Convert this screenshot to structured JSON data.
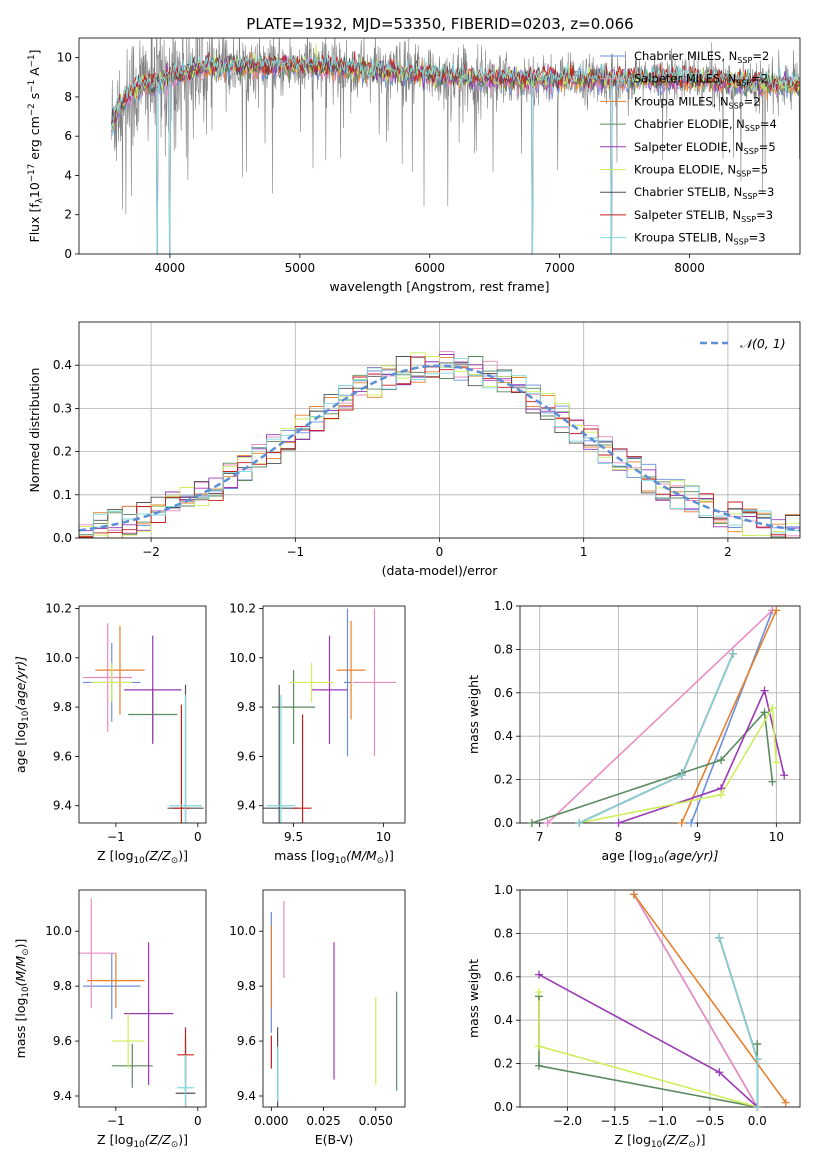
{
  "title": "PLATE=1932, MJD=53350, FIBERID=0203, z=0.066",
  "colors": {
    "Chabrier MILES": "#6a8fe0",
    "Salpeter MILES": "#e98cc1",
    "Kroupa MILES": "#e6802c",
    "Chabrier ELODIE": "#5b8a5e",
    "Salpeter ELODIE": "#9b38b6",
    "Kroupa ELODIE": "#cdef5a",
    "Chabrier STELIB": "#505050",
    "Salpeter STELIB": "#c81e1e",
    "Kroupa STELIB": "#7fd8df",
    "data": "#808080"
  },
  "chart_data": [
    {
      "id": "spectrum",
      "type": "line",
      "xlabel": "wavelength [Angstrom, rest frame]",
      "ylabel_parts": [
        "Flux [f",
        "λ",
        "10",
        "−17",
        " erg cm",
        "−2",
        " s",
        "−1",
        " A",
        "−1",
        "]"
      ],
      "xlim": [
        3300,
        8850
      ],
      "ylim": [
        0,
        11
      ],
      "xticks": [
        4000,
        5000,
        6000,
        7000,
        8000
      ],
      "yticks": [
        0,
        2,
        4,
        6,
        8,
        10
      ],
      "grid": false,
      "legend_position": "right",
      "legend": [
        {
          "label": "Chabrier MILES, N",
          "sub": "SSP",
          "tail": "=2",
          "series": "Chabrier MILES"
        },
        {
          "label": "Salpeter MILES, N",
          "sub": "SSP",
          "tail": "=2",
          "series": "Salpeter MILES"
        },
        {
          "label": "Kroupa MILES, N",
          "sub": "SSP",
          "tail": "=2",
          "series": "Kroupa MILES"
        },
        {
          "label": "Chabrier ELODIE, N",
          "sub": "SSP",
          "tail": "=4",
          "series": "Chabrier ELODIE"
        },
        {
          "label": "Salpeter ELODIE, N",
          "sub": "SSP",
          "tail": "=5",
          "series": "Salpeter ELODIE"
        },
        {
          "label": "Kroupa ELODIE, N",
          "sub": "SSP",
          "tail": "=5",
          "series": "Kroupa ELODIE"
        },
        {
          "label": "Chabrier STELIB, N",
          "sub": "SSP",
          "tail": "=3",
          "series": "Chabrier STELIB"
        },
        {
          "label": "Salpeter STELIB, N",
          "sub": "SSP",
          "tail": "=3",
          "series": "Salpeter STELIB"
        },
        {
          "label": "Kroupa STELIB, N",
          "sub": "SSP",
          "tail": "=3",
          "series": "Kroupa STELIB"
        }
      ],
      "data_range": [
        3550,
        9200
      ],
      "continuum": [
        [
          3550,
          6.5
        ],
        [
          3600,
          7.5
        ],
        [
          3700,
          8.2
        ],
        [
          3800,
          8.6
        ],
        [
          3900,
          8.6
        ],
        [
          4000,
          9.0
        ],
        [
          4100,
          9.2
        ],
        [
          4200,
          9.4
        ],
        [
          4300,
          9.5
        ],
        [
          4500,
          9.6
        ],
        [
          4800,
          9.5
        ],
        [
          5000,
          9.6
        ],
        [
          5300,
          9.5
        ],
        [
          5600,
          9.3
        ],
        [
          6000,
          9.1
        ],
        [
          6500,
          8.9
        ],
        [
          7000,
          8.9
        ],
        [
          7500,
          8.9
        ],
        [
          8000,
          8.9
        ],
        [
          8500,
          8.7
        ],
        [
          8850,
          8.6
        ]
      ],
      "model_drops": [
        [
          3900,
          -8
        ],
        [
          4000,
          -8
        ],
        [
          6790,
          -8
        ],
        [
          7400,
          -8
        ]
      ]
    },
    {
      "id": "residuals",
      "type": "histogram",
      "xlabel": "(data-model)/error",
      "ylabel": "Normed distribution",
      "xlim": [
        -2.5,
        2.5
      ],
      "ylim": [
        0,
        0.5
      ],
      "xticks": [
        -2,
        -1,
        0,
        1,
        2
      ],
      "yticks": [
        0.0,
        0.1,
        0.2,
        0.3,
        0.4
      ],
      "grid": true,
      "legend_position": "top-right",
      "legend": [
        {
          "label": "𝒩(0, 1)",
          "style": "dashed",
          "color": "#5b8fd6"
        }
      ],
      "bin_edges_from": -2.5,
      "bin_width": 0.1,
      "reference_curve": "standard normal pdf"
    },
    {
      "id": "age_vs_Z",
      "type": "errorbar",
      "xlabel": [
        "Z [log",
        "10",
        "(Z/Z",
        "⊙",
        ")]"
      ],
      "ylabel": [
        "age  [log",
        "10",
        "(age/yr)]"
      ],
      "xlim": [
        -1.45,
        0.1
      ],
      "ylim": [
        9.33,
        10.21
      ],
      "xticks": [
        -1,
        0
      ],
      "yticks": [
        9.4,
        9.6,
        9.8,
        10.0,
        10.2
      ],
      "points": [
        {
          "series": "Chabrier MILES",
          "x": -1.05,
          "y": 9.9,
          "xerr": 0.35,
          "yerr": 0.16
        },
        {
          "series": "Salpeter MILES",
          "x": -1.1,
          "y": 9.92,
          "xerr": 0.3,
          "yerr": 0.22
        },
        {
          "series": "Kroupa MILES",
          "x": -0.95,
          "y": 9.95,
          "xerr": 0.3,
          "yerr": 0.18
        },
        {
          "series": "Chabrier ELODIE",
          "x": -0.55,
          "y": 9.77,
          "xerr": 0.3,
          "yerr": 0.11
        },
        {
          "series": "Salpeter ELODIE",
          "x": -0.55,
          "y": 9.87,
          "xerr": 0.35,
          "yerr": 0.22
        },
        {
          "series": "Kroupa ELODIE",
          "x": -1.05,
          "y": 9.9,
          "xerr": 0.25,
          "yerr": 0.08
        },
        {
          "series": "Chabrier STELIB",
          "x": -0.15,
          "y": 9.39,
          "xerr": 0.22,
          "yerr": 0.5
        },
        {
          "series": "Salpeter STELIB",
          "x": -0.2,
          "y": 9.39,
          "xerr": 0.1,
          "yerr": 0.42
        },
        {
          "series": "Kroupa STELIB",
          "x": -0.15,
          "y": 9.4,
          "xerr": 0.2,
          "yerr": 0.45
        }
      ]
    },
    {
      "id": "age_vs_mass",
      "type": "errorbar",
      "xlabel": [
        "mass [log",
        "10",
        "(M/M",
        "⊙",
        ")]"
      ],
      "ylabel": [],
      "xlim": [
        9.33,
        10.12
      ],
      "ylim": [
        9.33,
        10.21
      ],
      "xticks": [
        9.5,
        10.0
      ],
      "yticks": [
        9.4,
        9.6,
        9.8,
        10.0,
        10.2
      ],
      "points": [
        {
          "series": "Chabrier MILES",
          "x": 9.8,
          "y": 9.9,
          "xerr": 0.02,
          "yerr": 0.3
        },
        {
          "series": "Salpeter MILES",
          "x": 9.95,
          "y": 9.9,
          "xerr": 0.12,
          "yerr": 0.3
        },
        {
          "series": "Kroupa MILES",
          "x": 9.82,
          "y": 9.95,
          "xerr": 0.08,
          "yerr": 0.2
        },
        {
          "series": "Chabrier ELODIE",
          "x": 9.5,
          "y": 9.8,
          "xerr": 0.12,
          "yerr": 0.15
        },
        {
          "series": "Salpeter ELODIE",
          "x": 9.7,
          "y": 9.87,
          "xerr": 0.1,
          "yerr": 0.22
        },
        {
          "series": "Kroupa ELODIE",
          "x": 9.6,
          "y": 9.9,
          "xerr": 0.12,
          "yerr": 0.08
        },
        {
          "series": "Chabrier STELIB",
          "x": 9.42,
          "y": 9.39,
          "xerr": 0.1,
          "yerr": 0.5
        },
        {
          "series": "Salpeter STELIB",
          "x": 9.55,
          "y": 9.39,
          "xerr": 0.05,
          "yerr": 0.38
        },
        {
          "series": "Kroupa STELIB",
          "x": 9.43,
          "y": 9.4,
          "xerr": 0.08,
          "yerr": 0.45
        }
      ]
    },
    {
      "id": "weight_vs_age",
      "type": "line",
      "xlabel": [
        "age  [log",
        "10",
        "(age/yr)]"
      ],
      "ylabel": "mass weight",
      "xlim": [
        6.75,
        10.3
      ],
      "ylim": [
        0,
        1
      ],
      "xticks": [
        7,
        8,
        9,
        10
      ],
      "yticks": [
        0.0,
        0.2,
        0.4,
        0.6,
        0.8,
        1.0
      ],
      "grid": true,
      "series": [
        {
          "name": "Chabrier MILES",
          "points": [
            [
              8.92,
              0.0
            ],
            [
              9.95,
              0.98
            ]
          ]
        },
        {
          "name": "Salpeter MILES",
          "points": [
            [
              7.1,
              0.0
            ],
            [
              9.95,
              0.98
            ]
          ]
        },
        {
          "name": "Kroupa MILES",
          "points": [
            [
              8.8,
              0.0
            ],
            [
              10.0,
              0.98
            ]
          ]
        },
        {
          "name": "Chabrier ELODIE",
          "points": [
            [
              6.9,
              0.0
            ],
            [
              8.8,
              0.23
            ],
            [
              9.3,
              0.29
            ],
            [
              9.85,
              0.51
            ],
            [
              9.95,
              0.19
            ]
          ]
        },
        {
          "name": "Salpeter ELODIE",
          "points": [
            [
              8.0,
              0.0
            ],
            [
              9.3,
              0.16
            ],
            [
              9.85,
              0.61
            ],
            [
              10.1,
              0.22
            ]
          ]
        },
        {
          "name": "Kroupa ELODIE",
          "points": [
            [
              7.5,
              0.0
            ],
            [
              9.3,
              0.13
            ],
            [
              9.95,
              0.53
            ],
            [
              10.0,
              0.28
            ]
          ]
        },
        {
          "name": "Chabrier STELIB",
          "points": [
            [
              7.5,
              0.0
            ],
            [
              8.8,
              0.22
            ],
            [
              9.45,
              0.78
            ]
          ]
        },
        {
          "name": "Salpeter STELIB",
          "points": [
            [
              7.5,
              0.0
            ],
            [
              8.8,
              0.22
            ],
            [
              9.45,
              0.78
            ]
          ]
        },
        {
          "name": "Kroupa STELIB",
          "points": [
            [
              7.5,
              0.0
            ],
            [
              8.8,
              0.22
            ],
            [
              9.45,
              0.78
            ]
          ]
        }
      ]
    },
    {
      "id": "mass_vs_Z",
      "type": "errorbar",
      "xlabel": [
        "Z [log",
        "10",
        "(Z/Z",
        "⊙",
        ")]"
      ],
      "ylabel": [
        "mass [log",
        "10",
        "(M/M",
        "⊙",
        ")]"
      ],
      "xlim": [
        -1.45,
        0.1
      ],
      "ylim": [
        9.36,
        10.15
      ],
      "xticks": [
        -1,
        0
      ],
      "yticks": [
        9.4,
        9.6,
        9.8,
        10.0
      ],
      "points": [
        {
          "series": "Chabrier MILES",
          "x": -1.05,
          "y": 9.8,
          "xerr": 0.35,
          "yerr": 0.12
        },
        {
          "series": "Salpeter MILES",
          "x": -1.3,
          "y": 9.92,
          "xerr": 0.3,
          "yerr": 0.2
        },
        {
          "series": "Kroupa MILES",
          "x": -1.0,
          "y": 9.82,
          "xerr": 0.35,
          "yerr": 0.1
        },
        {
          "series": "Chabrier ELODIE",
          "x": -0.8,
          "y": 9.51,
          "xerr": 0.25,
          "yerr": 0.08
        },
        {
          "series": "Salpeter ELODIE",
          "x": -0.6,
          "y": 9.7,
          "xerr": 0.3,
          "yerr": 0.26
        },
        {
          "series": "Kroupa ELODIE",
          "x": -0.85,
          "y": 9.6,
          "xerr": 0.2,
          "yerr": 0.1
        },
        {
          "series": "Chabrier STELIB",
          "x": -0.15,
          "y": 9.41,
          "xerr": 0.12,
          "yerr": 0.2
        },
        {
          "series": "Salpeter STELIB",
          "x": -0.15,
          "y": 9.55,
          "xerr": 0.1,
          "yerr": 0.1
        },
        {
          "series": "Kroupa STELIB",
          "x": -0.15,
          "y": 9.43,
          "xerr": 0.1,
          "yerr": 0.12
        }
      ]
    },
    {
      "id": "mass_vs_EBV",
      "type": "errorbar",
      "xlabel": "E(B-V)",
      "ylabel": [],
      "xlim": [
        -0.004,
        0.064
      ],
      "ylim": [
        9.36,
        10.15
      ],
      "xticks": [
        0.0,
        0.025,
        0.05
      ],
      "xticklabels": [
        "0.000",
        "0.025",
        "0.050"
      ],
      "yticks": [
        9.4,
        9.6,
        9.8,
        10.0
      ],
      "points": [
        {
          "series": "Chabrier MILES",
          "x": 0.0,
          "y": 9.85,
          "xerr": 0.0,
          "yerr": 0.22
        },
        {
          "series": "Salpeter MILES",
          "x": 0.006,
          "y": 9.97,
          "xerr": 0.0,
          "yerr": 0.14
        },
        {
          "series": "Kroupa MILES",
          "x": 0.0,
          "y": 9.87,
          "xerr": 0.0,
          "yerr": 0.15
        },
        {
          "series": "Chabrier ELODIE",
          "x": 0.06,
          "y": 9.6,
          "xerr": 0.0,
          "yerr": 0.18
        },
        {
          "series": "Salpeter ELODIE",
          "x": 0.03,
          "y": 9.71,
          "xerr": 0.0,
          "yerr": 0.25
        },
        {
          "series": "Kroupa ELODIE",
          "x": 0.05,
          "y": 9.6,
          "xerr": 0.0,
          "yerr": 0.16
        },
        {
          "series": "Chabrier STELIB",
          "x": 0.003,
          "y": 9.5,
          "xerr": 0.0,
          "yerr": 0.15
        },
        {
          "series": "Salpeter STELIB",
          "x": 0.0,
          "y": 9.56,
          "xerr": 0.0,
          "yerr": 0.06
        },
        {
          "series": "Kroupa STELIB",
          "x": 0.003,
          "y": 9.48,
          "xerr": 0.0,
          "yerr": 0.1
        }
      ]
    },
    {
      "id": "weight_vs_Z",
      "type": "line",
      "xlabel": [
        "Z [log",
        "10",
        "(Z/Z",
        "⊙",
        ")]"
      ],
      "ylabel": "mass weight",
      "xlim": [
        -2.5,
        0.45
      ],
      "ylim": [
        0,
        1
      ],
      "xticks": [
        -2.0,
        -1.5,
        -1.0,
        -0.5,
        0.0
      ],
      "xticklabels": [
        "−2.0",
        "−1.5",
        "−1.0",
        "−0.5",
        "0.0"
      ],
      "yticks": [
        0.0,
        0.2,
        0.4,
        0.6,
        0.8,
        1.0
      ],
      "grid": true,
      "series": [
        {
          "name": "Chabrier MILES",
          "points": [
            [
              -1.3,
              0.98
            ],
            [
              0.0,
              0.0
            ]
          ]
        },
        {
          "name": "Salpeter MILES",
          "points": [
            [
              -1.3,
              0.98
            ],
            [
              0.0,
              0.0
            ]
          ]
        },
        {
          "name": "Kroupa MILES",
          "points": [
            [
              -1.3,
              0.98
            ],
            [
              0.3,
              0.02
            ]
          ]
        },
        {
          "name": "Chabrier ELODIE",
          "points": [
            [
              -2.3,
              0.51
            ],
            [
              -2.3,
              0.19
            ],
            [
              0.0,
              0.0
            ],
            [
              0.0,
              0.29
            ]
          ]
        },
        {
          "name": "Salpeter ELODIE",
          "points": [
            [
              -2.3,
              0.61
            ],
            [
              -0.4,
              0.16
            ],
            [
              0.0,
              0.0
            ]
          ]
        },
        {
          "name": "Kroupa ELODIE",
          "points": [
            [
              -2.3,
              0.53
            ],
            [
              -2.3,
              0.28
            ],
            [
              0.0,
              0.0
            ]
          ]
        },
        {
          "name": "Chabrier STELIB",
          "points": [
            [
              -0.4,
              0.78
            ],
            [
              0.0,
              0.22
            ],
            [
              0.0,
              0.0
            ]
          ]
        },
        {
          "name": "Salpeter STELIB",
          "points": [
            [
              -0.4,
              0.78
            ],
            [
              0.0,
              0.22
            ],
            [
              0.0,
              0.0
            ]
          ]
        },
        {
          "name": "Kroupa STELIB",
          "points": [
            [
              -0.4,
              0.78
            ],
            [
              0.0,
              0.22
            ],
            [
              0.0,
              0.0
            ]
          ]
        }
      ]
    }
  ]
}
